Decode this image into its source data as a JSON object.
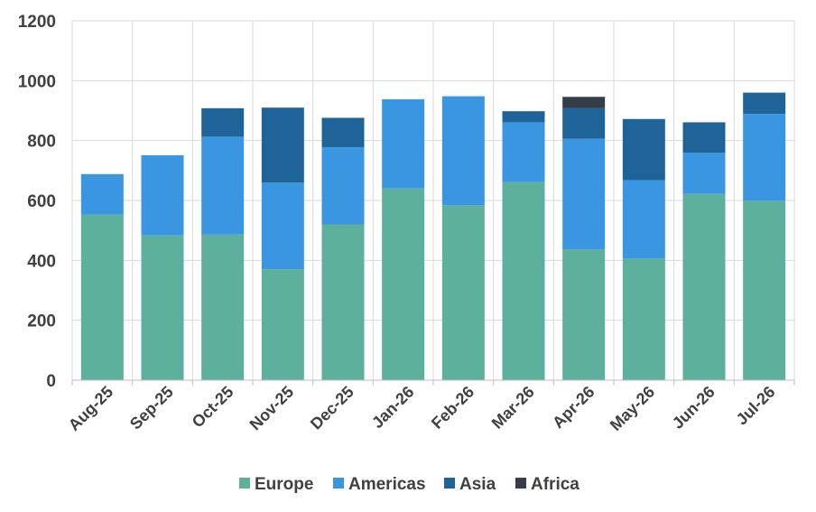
{
  "chart_data": {
    "type": "bar",
    "stacked": true,
    "categories": [
      "Aug-25",
      "Sep-25",
      "Oct-25",
      "Nov-25",
      "Dec-25",
      "Jan-26",
      "Feb-26",
      "Mar-26",
      "Apr-26",
      "May-26",
      "Jun-26",
      "Jul-26"
    ],
    "series": [
      {
        "name": "Europe",
        "color": "#5db09b",
        "values": [
          553,
          483,
          486,
          370,
          520,
          640,
          584,
          661,
          437,
          406,
          622,
          599
        ]
      },
      {
        "name": "Americas",
        "color": "#3a96e1",
        "values": [
          135,
          268,
          327,
          290,
          258,
          298,
          364,
          200,
          369,
          262,
          137,
          290
        ]
      },
      {
        "name": "Asia",
        "color": "#1f6499",
        "values": [
          0,
          0,
          95,
          250,
          98,
          0,
          0,
          37,
          102,
          204,
          102,
          71
        ]
      },
      {
        "name": "Africa",
        "color": "#353d48",
        "values": [
          0,
          0,
          0,
          0,
          0,
          0,
          0,
          0,
          38,
          0,
          0,
          0
        ]
      }
    ],
    "yticks": [
      "0",
      "200",
      "400",
      "600",
      "800",
      "1000",
      "1200"
    ],
    "ylim": [
      0,
      1200
    ],
    "grid": true,
    "legend_position": "bottom"
  }
}
